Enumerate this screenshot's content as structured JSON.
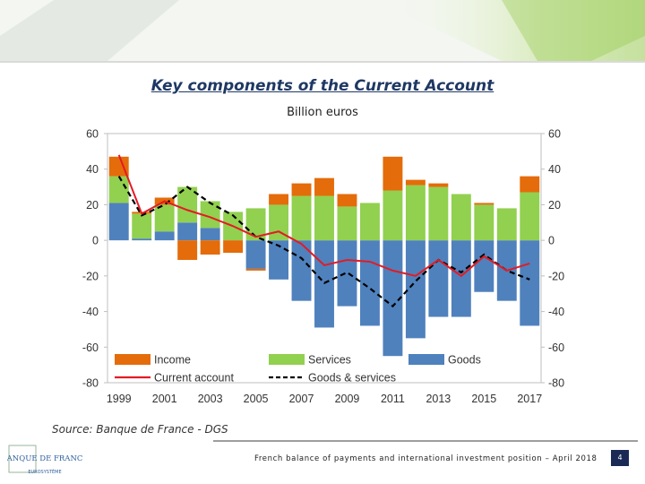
{
  "title": "Key components of the Current Account",
  "subtitle": "Billion euros",
  "source": "Source: Banque de France - DGS",
  "footer": "French balance of payments and international investment position – April 2018",
  "page_number": "4",
  "logo": {
    "line1": "BANQUE DE FRANCE",
    "line2": "EUROSYSTÈME"
  },
  "colors": {
    "income": "#e46c0a",
    "services": "#92d050",
    "goods": "#4f81bd",
    "current_account": "#e31b23",
    "goods_services": "#000000",
    "title": "#1f3864",
    "banner": "#8dc63f"
  },
  "chart_data": {
    "type": "bar",
    "stacked": true,
    "years": [
      1999,
      2000,
      2001,
      2002,
      2003,
      2004,
      2005,
      2006,
      2007,
      2008,
      2009,
      2010,
      2011,
      2012,
      2013,
      2014,
      2015,
      2016,
      2017
    ],
    "x_tick_labels": [
      "1999",
      "2001",
      "2003",
      "2005",
      "2007",
      "2009",
      "2011",
      "2013",
      "2015",
      "2017"
    ],
    "y_ticks": [
      60,
      40,
      20,
      0,
      -20,
      -40,
      -60,
      -80
    ],
    "ylim": [
      -80,
      60
    ],
    "series": [
      {
        "name": "Income",
        "kind": "bar",
        "values": [
          11,
          1,
          4,
          -11,
          -8,
          -7,
          -1,
          6,
          7,
          10,
          7,
          0,
          19,
          3,
          2,
          0,
          1,
          0,
          9
        ]
      },
      {
        "name": "Services",
        "kind": "bar",
        "values": [
          15,
          14,
          15,
          20,
          15,
          16,
          18,
          20,
          25,
          25,
          19,
          21,
          28,
          31,
          30,
          26,
          20,
          18,
          27
        ]
      },
      {
        "name": "Goods",
        "kind": "bar",
        "values": [
          21,
          1,
          5,
          10,
          7,
          0,
          -16,
          -22,
          -34,
          -49,
          -37,
          -48,
          -65,
          -55,
          -43,
          -43,
          -29,
          -34,
          -48
        ]
      },
      {
        "name": "Current account",
        "kind": "line",
        "values": [
          48,
          15,
          22,
          17,
          13,
          8,
          2,
          5,
          -2,
          -14,
          -11,
          -12,
          -17,
          -20,
          -11,
          -20,
          -9,
          -17,
          -13
        ]
      },
      {
        "name": "Goods & services",
        "kind": "line",
        "values": [
          36,
          14,
          20,
          30,
          21,
          14,
          2,
          -3,
          -10,
          -24,
          -18,
          -27,
          -37,
          -23,
          -11,
          -18,
          -8,
          -17,
          -22
        ]
      }
    ],
    "legend_position": "bottom inside plot",
    "grid": false
  }
}
